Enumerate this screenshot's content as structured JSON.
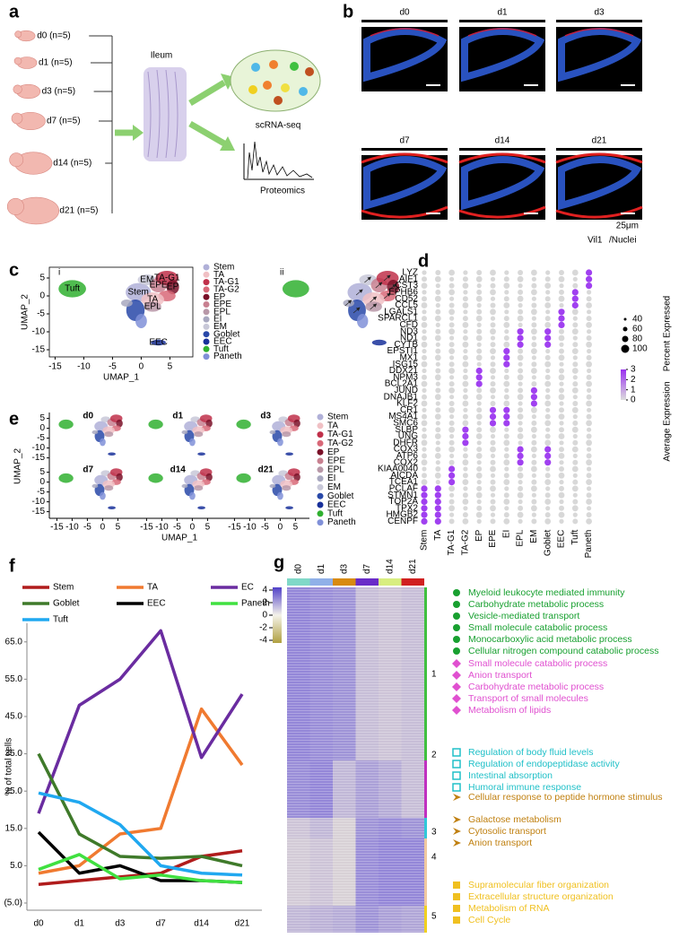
{
  "a": {
    "letter": "a",
    "groups": [
      "d0 (n=5)",
      "d1 (n=5)",
      "d3 (n=5)",
      "d7 (n=5)",
      "d14 (n=5)",
      "d21 (n=5)"
    ],
    "tissue": "Ileum",
    "methods": [
      "scRNA-seq",
      "Proteomics"
    ]
  },
  "b": {
    "letter": "b",
    "days": [
      "d0",
      "d1",
      "d3",
      "d7",
      "d14",
      "d21"
    ],
    "scale_bar": "25μm",
    "stain": [
      "Vil1",
      "/Nuclei"
    ]
  },
  "clusters": [
    {
      "name": "Stem",
      "color": "#b0b0d8"
    },
    {
      "name": "TA",
      "color": "#f0c0c4"
    },
    {
      "name": "TA-G1",
      "color": "#c0304a"
    },
    {
      "name": "TA-G2",
      "color": "#d86878"
    },
    {
      "name": "EP",
      "color": "#7a1028"
    },
    {
      "name": "EPE",
      "color": "#c88090"
    },
    {
      "name": "EPL",
      "color": "#b898a8"
    },
    {
      "name": "EI",
      "color": "#a8a8c0"
    },
    {
      "name": "EM",
      "color": "#c8c8d8"
    },
    {
      "name": "Goblet",
      "color": "#2848a8"
    },
    {
      "name": "EEC",
      "color": "#18309a"
    },
    {
      "name": "Tuft",
      "color": "#30b030"
    },
    {
      "name": "Paneth",
      "color": "#8090d8"
    }
  ],
  "c": {
    "letter": "c",
    "subpanels": [
      "i",
      "ii"
    ],
    "x_label": "UMAP_1",
    "y_label": "UMAP_2",
    "xlim": [
      -16,
      9
    ],
    "ylim": [
      -17,
      8
    ],
    "xticks": [
      -15,
      -10,
      -5,
      0,
      5
    ],
    "yticks": [
      5,
      0,
      -5,
      -10,
      -15
    ],
    "plot_labels": [
      "EM",
      "EPE",
      "EPL",
      "EP",
      "TA-G1",
      "TA",
      "Stem",
      "Tuft",
      "EEC"
    ]
  },
  "d": {
    "letter": "d",
    "columns": [
      "Stem",
      "TA",
      "TA-G1",
      "TA-G2",
      "EP",
      "EPE",
      "EI",
      "EPL",
      "EM",
      "Goblet",
      "EEC",
      "Tuft",
      "Paneth"
    ],
    "rows": [
      {
        "gene": "LYZ",
        "high": [
          "Paneth"
        ]
      },
      {
        "gene": "AIF1",
        "high": [
          "Paneth"
        ]
      },
      {
        "gene": "CST3",
        "high": [
          "Paneth"
        ]
      },
      {
        "gene": "EPHB6",
        "high": [
          "Tuft"
        ]
      },
      {
        "gene": "CD52",
        "high": [
          "Tuft"
        ]
      },
      {
        "gene": "CCL5",
        "high": [
          "Tuft"
        ]
      },
      {
        "gene": "LGALS1",
        "high": [
          "EEC"
        ]
      },
      {
        "gene": "SPARCL1",
        "high": [
          "EEC"
        ]
      },
      {
        "gene": "CFD",
        "high": [
          "EEC"
        ]
      },
      {
        "gene": "ND3",
        "high": [
          "EPL",
          "Goblet"
        ]
      },
      {
        "gene": "ND1",
        "high": [
          "EPL",
          "Goblet"
        ]
      },
      {
        "gene": "CYTB",
        "high": [
          "EPL",
          "Goblet"
        ]
      },
      {
        "gene": "EPSTI1",
        "high": [
          "EI"
        ]
      },
      {
        "gene": "MX1",
        "high": [
          "EI"
        ]
      },
      {
        "gene": "ISG15",
        "high": [
          "EI"
        ]
      },
      {
        "gene": "DDX21",
        "high": [
          "EP"
        ]
      },
      {
        "gene": "NPM3",
        "high": [
          "EP"
        ]
      },
      {
        "gene": "BCL2A1",
        "high": [
          "EP"
        ]
      },
      {
        "gene": "JUND",
        "high": [
          "EM"
        ]
      },
      {
        "gene": "DNAJB1",
        "high": [
          "EM"
        ]
      },
      {
        "gene": "KLF2",
        "high": [
          "EM"
        ]
      },
      {
        "gene": "CR1",
        "high": [
          "EPE",
          "EI"
        ]
      },
      {
        "gene": "MS4A1",
        "high": [
          "EPE",
          "EI"
        ]
      },
      {
        "gene": "SMC6",
        "high": [
          "EPE",
          "EI"
        ]
      },
      {
        "gene": "SLBP",
        "high": [
          "TA-G2"
        ]
      },
      {
        "gene": "UNG",
        "high": [
          "TA-G2"
        ]
      },
      {
        "gene": "DHFR",
        "high": [
          "TA-G2"
        ]
      },
      {
        "gene": "COX3",
        "high": [
          "EPL",
          "Goblet"
        ]
      },
      {
        "gene": "ATP6",
        "high": [
          "EPL",
          "Goblet"
        ]
      },
      {
        "gene": "COX2",
        "high": [
          "EPL",
          "Goblet"
        ]
      },
      {
        "gene": "KIAA0040",
        "high": [
          "TA-G1"
        ]
      },
      {
        "gene": "AICDA",
        "high": [
          "TA-G1"
        ]
      },
      {
        "gene": "TCEA1",
        "high": [
          "TA-G1"
        ]
      },
      {
        "gene": "PCLAF",
        "high": [
          "Stem",
          "TA"
        ]
      },
      {
        "gene": "STMN1",
        "high": [
          "Stem",
          "TA"
        ]
      },
      {
        "gene": "TOP2A",
        "high": [
          "Stem",
          "TA"
        ]
      },
      {
        "gene": "TPX2",
        "high": [
          "Stem",
          "TA"
        ]
      },
      {
        "gene": "HMGB2",
        "high": [
          "Stem",
          "TA"
        ]
      },
      {
        "gene": "CENPF",
        "high": [
          "Stem",
          "TA"
        ]
      }
    ],
    "size_title": "Percent Expressed",
    "size_ticks": [
      40,
      60,
      80,
      100
    ],
    "color_title": "Average Expression",
    "color_ticks": [
      3,
      2,
      1,
      0
    ]
  },
  "e": {
    "letter": "e",
    "days": [
      "d0",
      "d1",
      "d3",
      "d7",
      "d14",
      "d21"
    ],
    "x_label": "UMAP_1",
    "y_label": "UMAP_2",
    "xticks": [
      -15,
      -10,
      -5,
      0,
      5
    ],
    "yticks": [
      5,
      0,
      -5,
      -10,
      -15
    ]
  },
  "chart_data": {
    "panel": "f",
    "type": "line",
    "y_label": "% of total cells",
    "categories": [
      "d0",
      "d1",
      "d3",
      "d7",
      "d14",
      "d21"
    ],
    "ylim": [
      -5,
      70
    ],
    "yticks": [
      {
        "value": -5,
        "label": "(5.0)"
      },
      {
        "value": 5,
        "label": "5.0"
      },
      {
        "value": 15,
        "label": "15.0"
      },
      {
        "value": 25,
        "label": "25.0"
      },
      {
        "value": 35,
        "label": "35.0"
      },
      {
        "value": 45,
        "label": "45.0"
      },
      {
        "value": 55,
        "label": "55.0"
      },
      {
        "value": 65,
        "label": "65.0"
      }
    ],
    "series": [
      {
        "name": "Stem",
        "color": "#b01c1c",
        "values": [
          0,
          1,
          2,
          3,
          7.5,
          9
        ]
      },
      {
        "name": "TA",
        "color": "#f07a30",
        "values": [
          3,
          5,
          13.5,
          15,
          47,
          32
        ]
      },
      {
        "name": "EC",
        "color": "#6a2ca0",
        "values": [
          19,
          48,
          55,
          68,
          34,
          51
        ]
      },
      {
        "name": "Goblet",
        "color": "#3f7a2a",
        "values": [
          35,
          13.5,
          7.5,
          7,
          7.5,
          5
        ]
      },
      {
        "name": "EEC",
        "color": "#000000",
        "values": [
          14,
          3,
          5,
          1,
          1,
          0.5
        ]
      },
      {
        "name": "Paneth",
        "color": "#40e040",
        "values": [
          4,
          8,
          1.5,
          2.5,
          1,
          0.5
        ]
      },
      {
        "name": "Tuft",
        "color": "#20a8f0",
        "values": [
          24.5,
          22,
          16,
          5,
          3,
          2.5
        ]
      }
    ]
  },
  "g": {
    "letter": "g",
    "days": [
      {
        "name": "d0",
        "color": "#80d8c8"
      },
      {
        "name": "d1",
        "color": "#90b0e8"
      },
      {
        "name": "d3",
        "color": "#d88a10"
      },
      {
        "name": "d7",
        "color": "#6a2cc8"
      },
      {
        "name": "d14",
        "color": "#d8ee80"
      },
      {
        "name": "d21",
        "color": "#d02020"
      }
    ],
    "scale_ticks": [
      4,
      2,
      0,
      -2,
      -4
    ],
    "modules": [
      {
        "label": "1",
        "color": "#40c040"
      },
      {
        "label": "2",
        "color": "#c030c0"
      },
      {
        "label": "3",
        "color": "#30c8d8"
      },
      {
        "label": "4",
        "color": "#f0c8a0"
      },
      {
        "label": "5",
        "color": "#f0d020"
      }
    ],
    "term_groups": [
      {
        "color": "#18a030",
        "marker": "circle",
        "terms": [
          "Myeloid leukocyte mediated immunity",
          "Carbohydrate metabolic process",
          "Vesicle-mediated transport",
          "Small molecule catabolic process",
          "Monocarboxylic acid metabolic process",
          "Cellular nitrogen compound catabolic process"
        ]
      },
      {
        "color": "#e050d0",
        "marker": "diamond",
        "terms": [
          "Small molecule catabolic process",
          "Anion transport",
          "Carbohydrate metabolic process",
          "Transport of small molecules",
          "Metabolism of lipids"
        ]
      },
      {
        "color": "#20c0c8",
        "marker": "square-open",
        "terms": [
          "Regulation of body fluid levels",
          "Regulation of endopeptidase activity",
          "Intestinal absorption",
          "Humoral immune response"
        ]
      },
      {
        "color": "#c08010",
        "marker": "arrow",
        "terms": [
          "Cellular response to peptide hormone stimulus",
          "Galactose metabolism",
          "Cytosolic transport",
          "Anion transport"
        ]
      },
      {
        "color": "#f0c020",
        "marker": "square",
        "terms": [
          "Supramolecular fiber organization",
          "Extracellular structure organization",
          "Metabolism of RNA",
          "Cell Cycle"
        ]
      }
    ]
  }
}
